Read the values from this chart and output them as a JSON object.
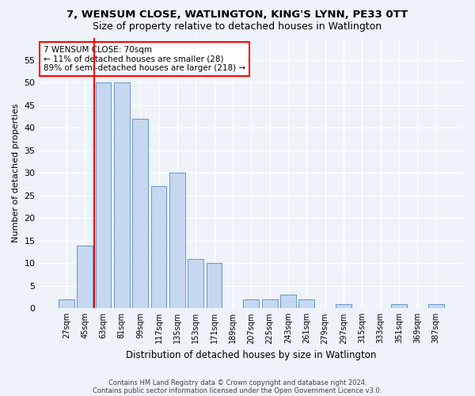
{
  "title1": "7, WENSUM CLOSE, WATLINGTON, KING'S LYNN, PE33 0TT",
  "title2": "Size of property relative to detached houses in Watlington",
  "xlabel": "Distribution of detached houses by size in Watlington",
  "ylabel": "Number of detached properties",
  "categories": [
    "27sqm",
    "45sqm",
    "63sqm",
    "81sqm",
    "99sqm",
    "117sqm",
    "135sqm",
    "153sqm",
    "171sqm",
    "189sqm",
    "207sqm",
    "225sqm",
    "243sqm",
    "261sqm",
    "279sqm",
    "297sqm",
    "315sqm",
    "333sqm",
    "351sqm",
    "369sqm",
    "387sqm"
  ],
  "values": [
    2,
    14,
    50,
    50,
    42,
    27,
    30,
    11,
    10,
    0,
    2,
    2,
    3,
    2,
    0,
    1,
    0,
    0,
    1,
    0,
    1
  ],
  "bar_color": "#c5d8f0",
  "bar_edge_color": "#6699cc",
  "red_line_x": 1.5,
  "annotation_text": "7 WENSUM CLOSE: 70sqm\n← 11% of detached houses are smaller (28)\n89% of semi-detached houses are larger (218) →",
  "annotation_box_color": "white",
  "annotation_box_edge_color": "red",
  "footnote1": "Contains HM Land Registry data © Crown copyright and database right 2024.",
  "footnote2": "Contains public sector information licensed under the Open Government Licence v3.0.",
  "ylim": [
    0,
    60
  ],
  "yticks": [
    0,
    5,
    10,
    15,
    20,
    25,
    30,
    35,
    40,
    45,
    50,
    55
  ],
  "bg_color": "#eef2f9",
  "grid_color": "white",
  "title1_fontsize": 9.5,
  "title2_fontsize": 9
}
